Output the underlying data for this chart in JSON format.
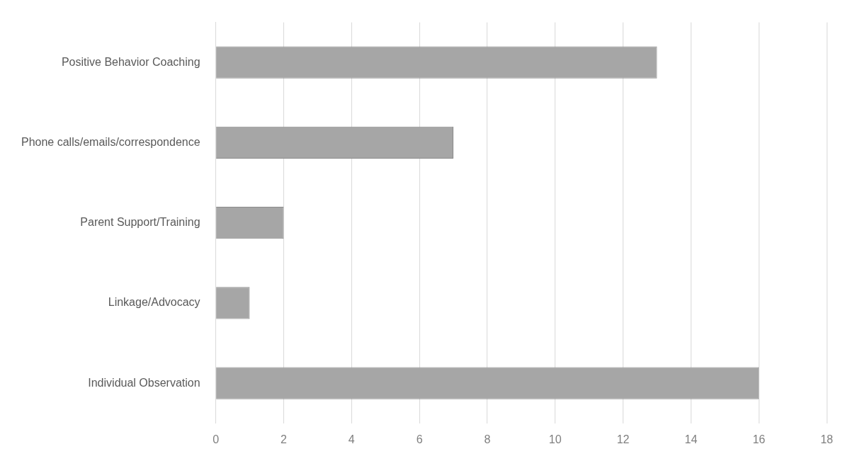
{
  "chart_data": {
    "type": "bar",
    "orientation": "horizontal",
    "categories": [
      "Positive Behavior Coaching",
      "Phone calls/emails/correspondence",
      "Parent Support/Training",
      "Linkage/Advocacy",
      "Individual Observation"
    ],
    "values": [
      13,
      7,
      2,
      1,
      16
    ],
    "color": "#a6a6a6",
    "xlim": [
      0,
      18
    ],
    "xticks": [
      0,
      2,
      4,
      6,
      8,
      10,
      12,
      14,
      16,
      18
    ],
    "grid": "x",
    "legend": false
  }
}
